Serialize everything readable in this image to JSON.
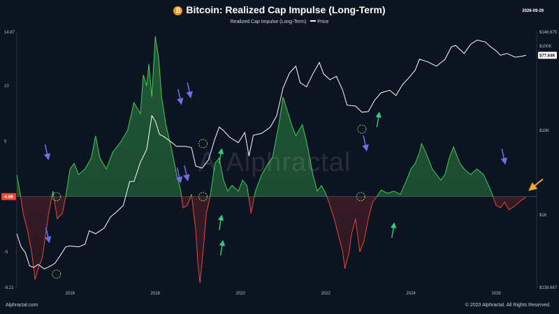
{
  "header": {
    "title": "Bitcoin: Realized Cap Impulse (Long-Term)",
    "date": "2026-09-29",
    "legend_series": "Realized Cap Impulse (Long-Term)",
    "legend_price": "Price"
  },
  "footer": {
    "left": "Alphractal.com",
    "right": "© 2020 Alphractal. All Rights Reserved."
  },
  "watermark": "Alphractal",
  "colors": {
    "background": "#0d1421",
    "positive": "#3ecf5a",
    "negative": "#e8483b",
    "price": "#ffffff",
    "arrow_blue": "#6f6ee8",
    "arrow_green": "#2fd07a",
    "arrow_orange": "#f5a623",
    "current_badge": "#e8483b"
  },
  "chart_data": {
    "type": "area",
    "x_range": [
      2014.75,
      2026.95
    ],
    "x_ticks": [
      "2016",
      "2018",
      "2020",
      "2022",
      "2024",
      "2026"
    ],
    "left_axis": {
      "range": [
        -8.21,
        14.87
      ],
      "ticks": [
        "14.87",
        "10",
        "5",
        "-5",
        "-8.21"
      ],
      "current_value": "-0.06"
    },
    "right_axis": {
      "scale": "log",
      "range": [
        138.667,
        146675
      ],
      "ticks": [
        "$146.675",
        "$100K",
        "$10K",
        "$1K",
        "$138.667"
      ],
      "current_value": "$77.84K"
    },
    "impulse_series": {
      "name": "Realized Cap Impulse (Long-Term)",
      "points": [
        [
          2014.75,
          2.0
        ],
        [
          2014.82,
          0.5
        ],
        [
          2014.9,
          -1.5
        ],
        [
          2015.0,
          -3.0
        ],
        [
          2015.1,
          -5.0
        ],
        [
          2015.18,
          -7.5
        ],
        [
          2015.25,
          -6.5
        ],
        [
          2015.35,
          -5.5
        ],
        [
          2015.5,
          -1.5
        ],
        [
          2015.6,
          0.5
        ],
        [
          2015.7,
          -2.0
        ],
        [
          2015.82,
          -1.5
        ],
        [
          2015.9,
          0.0
        ],
        [
          2016.0,
          2.5
        ],
        [
          2016.1,
          3.0
        ],
        [
          2016.2,
          2.0
        ],
        [
          2016.35,
          2.5
        ],
        [
          2016.5,
          3.5
        ],
        [
          2016.6,
          5.5
        ],
        [
          2016.7,
          3.5
        ],
        [
          2016.85,
          2.5
        ],
        [
          2017.0,
          4.0
        ],
        [
          2017.2,
          5.0
        ],
        [
          2017.35,
          6.0
        ],
        [
          2017.5,
          8.5
        ],
        [
          2017.65,
          7.5
        ],
        [
          2017.72,
          11.0
        ],
        [
          2017.8,
          10.0
        ],
        [
          2017.85,
          12.0
        ],
        [
          2017.92,
          9.0
        ],
        [
          2018.0,
          14.5
        ],
        [
          2018.08,
          12.5
        ],
        [
          2018.15,
          9.0
        ],
        [
          2018.25,
          6.5
        ],
        [
          2018.4,
          4.0
        ],
        [
          2018.5,
          2.0
        ],
        [
          2018.6,
          0.5
        ],
        [
          2018.65,
          -1.0
        ],
        [
          2018.75,
          -0.8
        ],
        [
          2018.85,
          0.2
        ],
        [
          2018.95,
          -3.0
        ],
        [
          2019.0,
          -6.0
        ],
        [
          2019.05,
          -7.8
        ],
        [
          2019.12,
          -5.0
        ],
        [
          2019.2,
          -1.5
        ],
        [
          2019.3,
          0.3
        ],
        [
          2019.4,
          3.0
        ],
        [
          2019.5,
          3.5
        ],
        [
          2019.6,
          1.5
        ],
        [
          2019.7,
          0.5
        ],
        [
          2019.8,
          1.0
        ],
        [
          2019.95,
          0.5
        ],
        [
          2020.05,
          1.5
        ],
        [
          2020.15,
          1.0
        ],
        [
          2020.25,
          -1.5
        ],
        [
          2020.35,
          0.5
        ],
        [
          2020.5,
          2.0
        ],
        [
          2020.65,
          3.0
        ],
        [
          2020.75,
          3.5
        ],
        [
          2020.9,
          6.5
        ],
        [
          2021.0,
          9.0
        ],
        [
          2021.08,
          8.0
        ],
        [
          2021.2,
          6.5
        ],
        [
          2021.3,
          5.5
        ],
        [
          2021.45,
          6.5
        ],
        [
          2021.55,
          5.0
        ],
        [
          2021.7,
          2.0
        ],
        [
          2021.8,
          0.5
        ],
        [
          2021.9,
          1.0
        ],
        [
          2022.0,
          0.3
        ],
        [
          2022.1,
          -0.8
        ],
        [
          2022.2,
          -2.0
        ],
        [
          2022.3,
          -3.5
        ],
        [
          2022.4,
          -5.0
        ],
        [
          2022.45,
          -6.5
        ],
        [
          2022.55,
          -5.0
        ],
        [
          2022.6,
          -3.5
        ],
        [
          2022.7,
          -2.0
        ],
        [
          2022.8,
          -5.0
        ],
        [
          2022.9,
          -4.0
        ],
        [
          2023.0,
          -2.0
        ],
        [
          2023.1,
          -0.5
        ],
        [
          2023.2,
          0.0
        ],
        [
          2023.3,
          0.6
        ],
        [
          2023.45,
          0.3
        ],
        [
          2023.6,
          0.5
        ],
        [
          2023.75,
          0.2
        ],
        [
          2023.9,
          1.5
        ],
        [
          2024.0,
          2.5
        ],
        [
          2024.1,
          3.0
        ],
        [
          2024.2,
          4.0
        ],
        [
          2024.25,
          4.8
        ],
        [
          2024.35,
          4.0
        ],
        [
          2024.5,
          2.5
        ],
        [
          2024.6,
          2.0
        ],
        [
          2024.7,
          1.5
        ],
        [
          2024.8,
          2.0
        ],
        [
          2024.9,
          3.5
        ],
        [
          2025.0,
          4.5
        ],
        [
          2025.05,
          4.0
        ],
        [
          2025.15,
          3.0
        ],
        [
          2025.25,
          2.5
        ],
        [
          2025.4,
          2.0
        ],
        [
          2025.55,
          2.5
        ],
        [
          2025.7,
          2.0
        ],
        [
          2025.8,
          1.2
        ],
        [
          2025.9,
          0.3
        ],
        [
          2026.0,
          -0.8
        ],
        [
          2026.1,
          -1.0
        ],
        [
          2026.2,
          -0.5
        ],
        [
          2026.3,
          -1.2
        ],
        [
          2026.45,
          -0.8
        ],
        [
          2026.6,
          -0.3
        ],
        [
          2026.7,
          -0.06
        ]
      ]
    },
    "price_series": {
      "name": "Price",
      "points": [
        [
          2014.75,
          600
        ],
        [
          2014.85,
          420
        ],
        [
          2014.95,
          360
        ],
        [
          2015.05,
          250
        ],
        [
          2015.15,
          240
        ],
        [
          2015.25,
          260
        ],
        [
          2015.4,
          230
        ],
        [
          2015.55,
          250
        ],
        [
          2015.65,
          270
        ],
        [
          2015.8,
          350
        ],
        [
          2015.9,
          420
        ],
        [
          2016.0,
          430
        ],
        [
          2016.2,
          420
        ],
        [
          2016.35,
          450
        ],
        [
          2016.45,
          650
        ],
        [
          2016.6,
          600
        ],
        [
          2016.8,
          700
        ],
        [
          2016.95,
          950
        ],
        [
          2017.1,
          1100
        ],
        [
          2017.25,
          1300
        ],
        [
          2017.4,
          2500
        ],
        [
          2017.5,
          2500
        ],
        [
          2017.65,
          4200
        ],
        [
          2017.8,
          6000
        ],
        [
          2017.92,
          15000
        ],
        [
          2018.0,
          13000
        ],
        [
          2018.1,
          9000
        ],
        [
          2018.2,
          8500
        ],
        [
          2018.35,
          7500
        ],
        [
          2018.5,
          6500
        ],
        [
          2018.7,
          6500
        ],
        [
          2018.85,
          6300
        ],
        [
          2018.95,
          3800
        ],
        [
          2019.1,
          3600
        ],
        [
          2019.25,
          4500
        ],
        [
          2019.4,
          8000
        ],
        [
          2019.5,
          11000
        ],
        [
          2019.6,
          10000
        ],
        [
          2019.75,
          8300
        ],
        [
          2019.95,
          7200
        ],
        [
          2020.1,
          9500
        ],
        [
          2020.2,
          5000
        ],
        [
          2020.3,
          8800
        ],
        [
          2020.5,
          9300
        ],
        [
          2020.7,
          11000
        ],
        [
          2020.85,
          15000
        ],
        [
          2021.0,
          32000
        ],
        [
          2021.15,
          48000
        ],
        [
          2021.3,
          58000
        ],
        [
          2021.4,
          37000
        ],
        [
          2021.55,
          33000
        ],
        [
          2021.7,
          47000
        ],
        [
          2021.85,
          64000
        ],
        [
          2021.95,
          47000
        ],
        [
          2022.1,
          40000
        ],
        [
          2022.25,
          44000
        ],
        [
          2022.4,
          30000
        ],
        [
          2022.5,
          20000
        ],
        [
          2022.7,
          19500
        ],
        [
          2022.85,
          16500
        ],
        [
          2023.0,
          16800
        ],
        [
          2023.15,
          23000
        ],
        [
          2023.3,
          28000
        ],
        [
          2023.5,
          30000
        ],
        [
          2023.65,
          26000
        ],
        [
          2023.8,
          35000
        ],
        [
          2023.95,
          42000
        ],
        [
          2024.1,
          52000
        ],
        [
          2024.2,
          70000
        ],
        [
          2024.4,
          65000
        ],
        [
          2024.6,
          58000
        ],
        [
          2024.8,
          70000
        ],
        [
          2024.95,
          98000
        ],
        [
          2025.05,
          102000
        ],
        [
          2025.25,
          82000
        ],
        [
          2025.4,
          105000
        ],
        [
          2025.55,
          118000
        ],
        [
          2025.75,
          112000
        ],
        [
          2025.85,
          100000
        ],
        [
          2026.0,
          88000
        ],
        [
          2026.1,
          78000
        ],
        [
          2026.25,
          82000
        ],
        [
          2026.45,
          74000
        ],
        [
          2026.6,
          76000
        ],
        [
          2026.7,
          77840
        ]
      ]
    },
    "annotations": {
      "blue_arrows_down": [
        [
          2015.48,
          3.2
        ],
        [
          2015.5,
          -4.3
        ],
        [
          2018.58,
          1.1
        ],
        [
          2018.75,
          1.3
        ],
        [
          2018.6,
          8.2
        ],
        [
          2018.82,
          8.8
        ],
        [
          2022.95,
          4.0
        ],
        [
          2022.57,
          19.0
        ],
        [
          2026.2,
          2.8
        ],
        [
          2026.25,
          45.0
        ]
      ],
      "green_arrows_up": [
        [
          2019.55,
          -1.5
        ],
        [
          2019.58,
          -3.8
        ],
        [
          2019.55,
          4.5
        ],
        [
          2023.6,
          -2.2
        ],
        [
          2023.25,
          7.8
        ]
      ],
      "dashed_circles": [
        [
          2015.68,
          0.0
        ],
        [
          2015.68,
          -7.0
        ],
        [
          2019.12,
          0.0
        ],
        [
          2019.12,
          4.8
        ],
        [
          2022.82,
          0.0
        ],
        [
          2022.85,
          6.1
        ]
      ],
      "orange_arrow": [
        2026.8,
        0.7
      ]
    }
  }
}
